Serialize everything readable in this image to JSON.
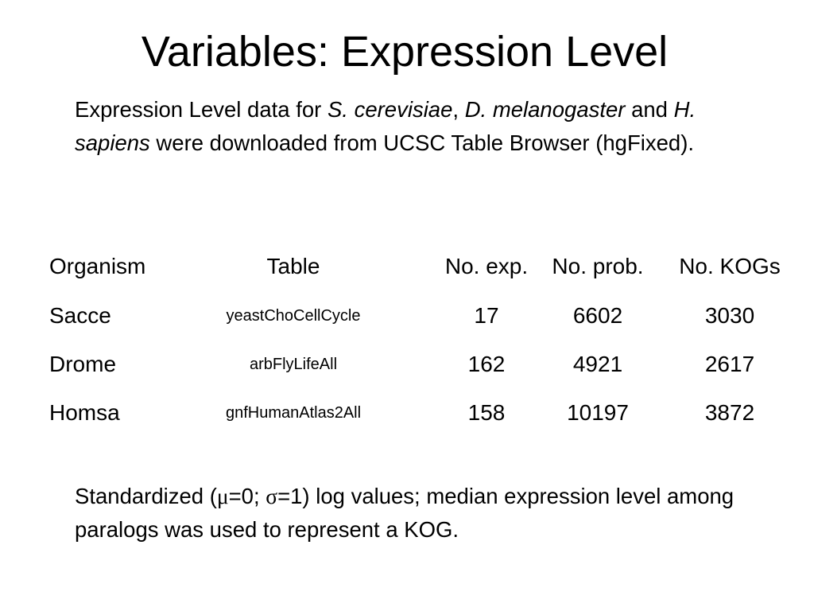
{
  "title": "Variables: Expression Level",
  "intro": [
    "Expression Level data for ",
    "S. cerevisiae",
    ", ",
    "D. melanogaster",
    " and ",
    "H. sapiens",
    " were downloaded from UCSC Table Browser (hgFixed)."
  ],
  "table": {
    "header": [
      "Organism",
      "Table",
      "No. exp.",
      "No. prob.",
      "No. KOGs"
    ],
    "rows": [
      [
        "Sacce",
        "yeastChoCellCycle",
        17,
        6602,
        3030
      ],
      [
        "Drome",
        "arbFlyLifeAll",
        162,
        4921,
        2617
      ],
      [
        "Homsa",
        "gnfHumanAtlas2All",
        158,
        10197,
        3872
      ]
    ]
  },
  "footer": [
    "Standardized (",
    "μ",
    "=0; ",
    "σ",
    "=1) log values; median expression level among paralogs was used to represent a KOG."
  ]
}
